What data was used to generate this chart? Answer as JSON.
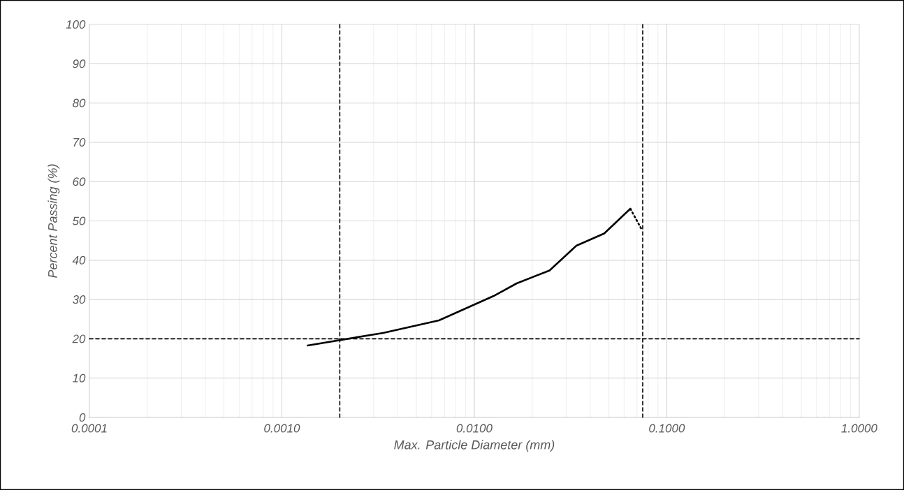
{
  "chart_data": {
    "type": "line",
    "xlabel": "Max. Particle Diameter (mm)",
    "ylabel": "Percent Passing (%)",
    "log": "x",
    "grid": true,
    "line_style": "solid",
    "marker": "none",
    "xlim": [
      0.0001,
      1.0
    ],
    "ylim": [
      0,
      100
    ],
    "xticks": [
      {
        "value": 0.0001,
        "label": "0.0001"
      },
      {
        "value": 0.001,
        "label": "0.0010"
      },
      {
        "value": 0.01,
        "label": "0.0100"
      },
      {
        "value": 0.1,
        "label": "0.1000"
      },
      {
        "value": 1.0,
        "label": "1.0000"
      }
    ],
    "yticks": [
      0,
      10,
      20,
      30,
      40,
      50,
      60,
      70,
      80,
      90,
      100
    ],
    "series": [
      {
        "color": "#000000",
        "x": [
          0.00136,
          0.00336,
          0.00655,
          0.0126,
          0.0166,
          0.0246,
          0.0339,
          0.0473,
          0.0647
        ],
        "values": [
          18.3,
          21.5,
          24.7,
          30.9,
          34.1,
          37.4,
          43.7,
          46.8,
          53.1
        ]
      },
      {
        "color": "#000000",
        "line_style": "dotted",
        "x": [
          0.0647,
          0.0739
        ],
        "values": [
          53.1,
          47.9
        ]
      }
    ],
    "ref_lines": [
      {
        "axis": "x",
        "value": 0.002,
        "color": "#000000",
        "line_style": "dashed"
      },
      {
        "axis": "x",
        "value": 0.075,
        "color": "#000000",
        "line_style": "dashed"
      },
      {
        "axis": "y",
        "value": 20,
        "color": "#000000",
        "line_style": "dashed"
      }
    ]
  }
}
